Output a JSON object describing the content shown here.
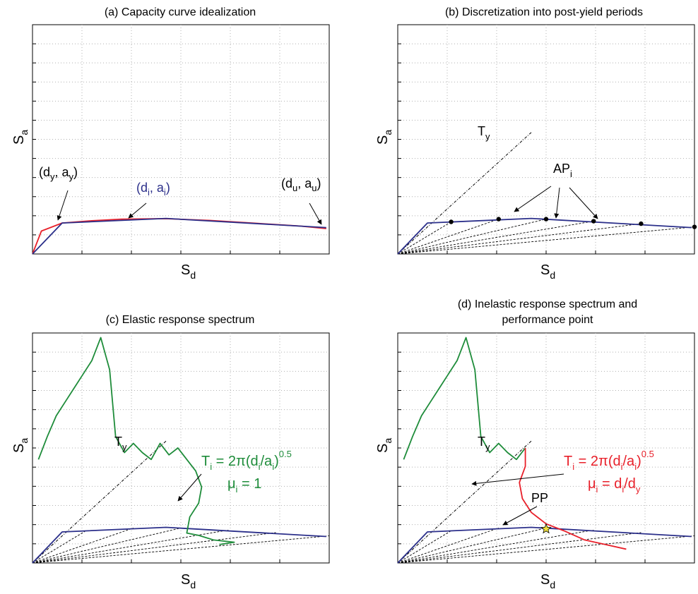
{
  "chart_data": [
    {
      "panel": "a",
      "type": "line",
      "title": "(a) Capacity curve idealization",
      "xlabel": "S_d",
      "ylabel": "S_a",
      "grid": true,
      "x_ticks": 6,
      "y_ticks": 12,
      "xlim": [
        0,
        1
      ],
      "ylim": [
        0,
        1
      ],
      "series": [
        {
          "name": "",
          "color": "#e8202a",
          "x": [
            0,
            0.03,
            0.1,
            0.2,
            0.3,
            0.45,
            0.6,
            0.75,
            0.9,
            0.99
          ],
          "y": [
            0,
            0.1,
            0.135,
            0.145,
            0.152,
            0.154,
            0.146,
            0.134,
            0.122,
            0.111
          ]
        },
        {
          "name": "",
          "color": "#2b2f8a",
          "x": [
            0,
            0.1,
            0.45,
            0.99
          ],
          "y": [
            0,
            0.135,
            0.155,
            0.115
          ]
        }
      ],
      "annotations": [
        {
          "main": "(d",
          "sub": "y",
          "after": ", a",
          "sub2": "y",
          "end": ")",
          "color": "#000000"
        },
        {
          "main": "(d",
          "sub": "i",
          "after": ", a",
          "sub2": "i",
          "end": ")",
          "color": "#2b2f8a"
        },
        {
          "main": "(d",
          "sub": "u",
          "after": ", a",
          "sub2": "u",
          "end": ")",
          "color": "#000000"
        }
      ]
    },
    {
      "panel": "b",
      "type": "line",
      "title": "(b) Discretization into post-yield periods",
      "xlabel": "S_d",
      "ylabel": "S_a",
      "grid": true,
      "x_ticks": 6,
      "y_ticks": 12,
      "xlim": [
        0,
        1
      ],
      "ylim": [
        0,
        1
      ],
      "series": [
        {
          "name": "",
          "color": "#2b2f8a",
          "x": [
            0,
            0.1,
            0.45,
            0.99
          ],
          "y": [
            0,
            0.135,
            0.155,
            0.115
          ]
        }
      ],
      "points": {
        "x": [
          0.18,
          0.34,
          0.5,
          0.66,
          0.82,
          1.0
        ],
        "y": [
          0.14,
          0.152,
          0.152,
          0.143,
          0.132,
          0.118
        ]
      },
      "ty_line": {
        "x": [
          0,
          0.45
        ],
        "y": [
          0,
          0.53
        ]
      },
      "labels": {
        "ty": "T",
        "ty_sub": "y",
        "ap": "AP",
        "ap_sub": "i"
      }
    },
    {
      "panel": "c",
      "type": "line",
      "title": "(c) Elastic response spectrum",
      "xlabel": "S_d",
      "ylabel": "S_a",
      "grid": true,
      "x_ticks": 6,
      "y_ticks": 12,
      "xlim": [
        0,
        1
      ],
      "ylim": [
        0,
        1
      ],
      "series": [
        {
          "name": "",
          "color": "#2b2f8a",
          "x": [
            0,
            0.1,
            0.45,
            0.99
          ],
          "y": [
            0,
            0.135,
            0.155,
            0.115
          ]
        },
        {
          "name": "",
          "color": "#1e8c3a",
          "x": [
            0.02,
            0.05,
            0.08,
            0.11,
            0.14,
            0.17,
            0.2,
            0.23,
            0.26,
            0.28,
            0.31,
            0.34,
            0.37,
            0.4,
            0.43,
            0.46,
            0.49,
            0.52,
            0.55,
            0.57,
            0.56,
            0.53,
            0.52,
            0.56,
            0.61,
            0.68,
            0.63
          ],
          "y": [
            0.45,
            0.55,
            0.64,
            0.7,
            0.76,
            0.82,
            0.88,
            0.98,
            0.84,
            0.55,
            0.48,
            0.52,
            0.48,
            0.45,
            0.52,
            0.47,
            0.5,
            0.45,
            0.4,
            0.33,
            0.26,
            0.2,
            0.13,
            0.12,
            0.1,
            0.09,
            0.08
          ]
        }
      ],
      "ty_line": {
        "x": [
          0,
          0.45
        ],
        "y": [
          0,
          0.53
        ]
      },
      "labels": {
        "ty": "T",
        "ty_sub": "y",
        "formula_main": "T",
        "formula_sub1": "i",
        "formula_mid": " = 2π(d",
        "formula_sub2": "i",
        "formula_mid2": "/a",
        "formula_sub3": "i",
        "formula_end": ")",
        "formula_exp": "0.5",
        "mu_main": "μ",
        "mu_sub": "i",
        "mu_end": " = 1"
      }
    },
    {
      "panel": "d",
      "type": "line",
      "title_line1": "(d) Inelastic response spectrum and",
      "title_line2": "performance point",
      "xlabel": "S_d",
      "ylabel": "S_a",
      "grid": true,
      "x_ticks": 6,
      "y_ticks": 12,
      "xlim": [
        0,
        1
      ],
      "ylim": [
        0,
        1
      ],
      "series": [
        {
          "name": "",
          "color": "#2b2f8a",
          "x": [
            0,
            0.1,
            0.45,
            0.99
          ],
          "y": [
            0,
            0.135,
            0.155,
            0.115
          ]
        },
        {
          "name": "",
          "color": "#1e8c3a",
          "x": [
            0.02,
            0.05,
            0.08,
            0.11,
            0.14,
            0.17,
            0.2,
            0.23,
            0.26,
            0.28,
            0.31,
            0.34,
            0.37,
            0.4,
            0.43
          ],
          "y": [
            0.45,
            0.55,
            0.64,
            0.7,
            0.76,
            0.82,
            0.88,
            0.98,
            0.84,
            0.55,
            0.48,
            0.52,
            0.48,
            0.45,
            0.5
          ]
        },
        {
          "name": "",
          "color": "#e8202a",
          "x": [
            0.43,
            0.43,
            0.41,
            0.42,
            0.45,
            0.5,
            0.56,
            0.63,
            0.7,
            0.77
          ],
          "y": [
            0.5,
            0.42,
            0.35,
            0.28,
            0.22,
            0.17,
            0.14,
            0.1,
            0.08,
            0.06
          ]
        }
      ],
      "pp": {
        "x": 0.5,
        "y": 0.148
      },
      "ty_line": {
        "x": [
          0,
          0.45
        ],
        "y": [
          0,
          0.53
        ]
      },
      "labels": {
        "ty": "T",
        "ty_sub": "y",
        "formula_main": "T",
        "formula_sub1": "i",
        "formula_mid": " = 2π(d",
        "formula_sub2": "i",
        "formula_mid2": "/a",
        "formula_sub3": "i",
        "formula_end": ")",
        "formula_exp": "0.5",
        "mu_main": "μ",
        "mu_sub": "i",
        "mu_mid": " = d",
        "mu_sub2": "i",
        "mu_mid2": "/d",
        "mu_sub3": "y",
        "pp": "PP"
      }
    }
  ],
  "colors": {
    "blue": "#2b2f8a",
    "red": "#e8202a",
    "green": "#1e8c3a",
    "star": "#f2e23a"
  }
}
